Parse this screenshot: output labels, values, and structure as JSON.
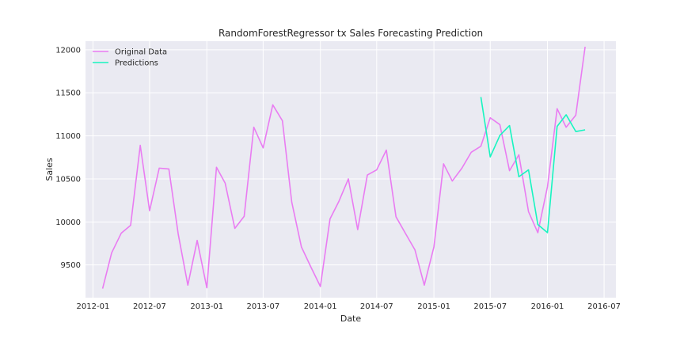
{
  "chart_data": {
    "type": "line",
    "title": "RandomForestRegressor tx Sales Forecasting Prediction",
    "xlabel": "Date",
    "ylabel": "Sales",
    "grid": true,
    "legend_position": "top-left",
    "xlim": [
      "2011-12-08",
      "2016-08-08"
    ],
    "ylim": [
      9120,
      12100
    ],
    "x_ticks": [
      "2012-01",
      "2012-07",
      "2013-01",
      "2013-07",
      "2014-01",
      "2014-07",
      "2015-01",
      "2015-07",
      "2016-01",
      "2016-07"
    ],
    "y_ticks": [
      9500,
      10000,
      10500,
      11000,
      11500,
      12000
    ],
    "series": [
      {
        "name": "Original Data",
        "color": "#e97cf2",
        "x": [
          "2012-02-01",
          "2012-03-01",
          "2012-04-01",
          "2012-05-01",
          "2012-06-01",
          "2012-07-01",
          "2012-08-01",
          "2012-09-01",
          "2012-10-01",
          "2012-11-01",
          "2012-12-01",
          "2013-01-01",
          "2013-02-01",
          "2013-03-01",
          "2013-04-01",
          "2013-05-01",
          "2013-06-01",
          "2013-07-01",
          "2013-08-01",
          "2013-09-01",
          "2013-10-01",
          "2013-11-01",
          "2013-12-01",
          "2014-01-01",
          "2014-02-01",
          "2014-03-01",
          "2014-04-01",
          "2014-05-01",
          "2014-06-01",
          "2014-07-01",
          "2014-08-01",
          "2014-09-01",
          "2014-10-01",
          "2014-11-01",
          "2014-12-01",
          "2015-01-01",
          "2015-02-01",
          "2015-03-01",
          "2015-04-01",
          "2015-05-01",
          "2015-06-01",
          "2015-07-01",
          "2015-08-01",
          "2015-09-01",
          "2015-10-01",
          "2015-11-01",
          "2015-12-01",
          "2016-01-01",
          "2016-02-01",
          "2016-03-01",
          "2016-04-01",
          "2016-05-01"
        ],
        "y": [
          9225,
          9640,
          9870,
          9960,
          10890,
          10130,
          10625,
          10615,
          9860,
          9265,
          9785,
          9235,
          10635,
          10450,
          9925,
          10065,
          11100,
          10860,
          11360,
          11175,
          10230,
          9710,
          9480,
          9250,
          10035,
          10235,
          10500,
          9910,
          10545,
          10605,
          10835,
          10060,
          9870,
          9675,
          9265,
          9710,
          10675,
          10475,
          10625,
          10810,
          10880,
          11210,
          11130,
          10595,
          10780,
          10120,
          9875,
          10410,
          11315,
          11100,
          11240,
          12035
        ]
      },
      {
        "name": "Predictions",
        "color": "#17f5c0",
        "x": [
          "2015-06-01",
          "2015-07-01",
          "2015-08-01",
          "2015-09-01",
          "2015-10-01",
          "2015-11-01",
          "2015-12-01",
          "2016-01-01",
          "2016-02-01",
          "2016-03-01",
          "2016-04-01",
          "2016-05-01"
        ],
        "y": [
          11450,
          10755,
          11005,
          11120,
          10525,
          10605,
          9970,
          9875,
          11110,
          11245,
          11050,
          11070
        ]
      }
    ]
  }
}
